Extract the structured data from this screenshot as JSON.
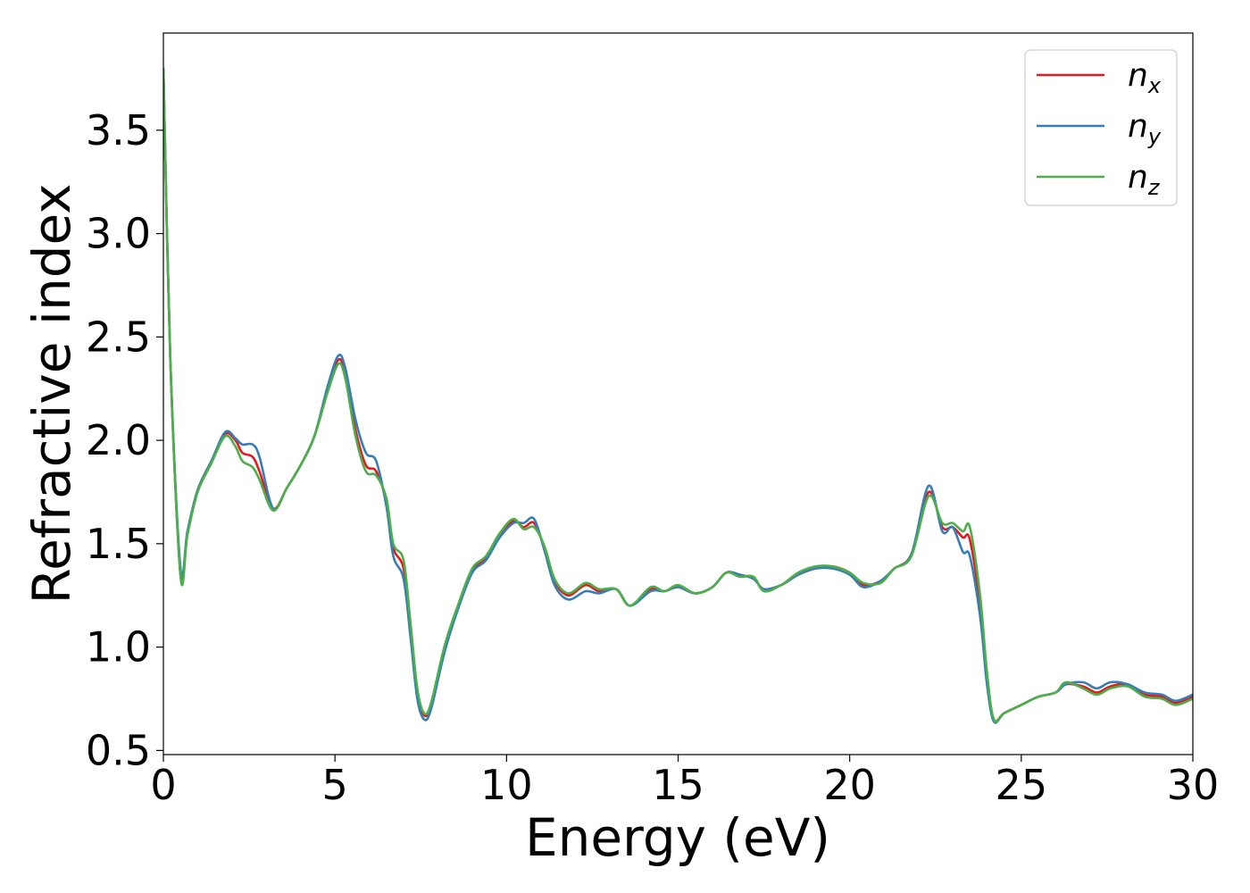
{
  "chart_data": {
    "type": "line",
    "title": "",
    "xlabel": "Energy (eV)",
    "ylabel": "Refractive index",
    "xlim": [
      0,
      30
    ],
    "ylim": [
      0.48,
      3.97
    ],
    "xticks": [
      0,
      5,
      10,
      15,
      20,
      25,
      30
    ],
    "xtick_labels": [
      "0",
      "5",
      "10",
      "15",
      "20",
      "25",
      "30"
    ],
    "yticks": [
      0.5,
      1.0,
      1.5,
      2.0,
      2.5,
      3.0,
      3.5
    ],
    "ytick_labels": [
      "0.5",
      "1.0",
      "1.5",
      "2.0",
      "2.5",
      "3.0",
      "3.5"
    ],
    "grid": false,
    "legend": "top-right",
    "series": [
      {
        "name": "n",
        "sub": "x",
        "color": "#e41a1c",
        "points": [
          [
            0,
            3.8
          ],
          [
            0.2,
            2.4
          ],
          [
            0.5,
            1.35
          ],
          [
            0.7,
            1.55
          ],
          [
            1.0,
            1.76
          ],
          [
            1.4,
            1.9
          ],
          [
            1.8,
            2.03
          ],
          [
            2.1,
            2.0
          ],
          [
            2.3,
            1.94
          ],
          [
            2.6,
            1.92
          ],
          [
            2.8,
            1.85
          ],
          [
            3.2,
            1.67
          ],
          [
            3.6,
            1.77
          ],
          [
            4.0,
            1.88
          ],
          [
            4.4,
            2.02
          ],
          [
            4.8,
            2.25
          ],
          [
            5.1,
            2.39
          ],
          [
            5.3,
            2.32
          ],
          [
            5.6,
            2.05
          ],
          [
            5.9,
            1.88
          ],
          [
            6.2,
            1.85
          ],
          [
            6.5,
            1.7
          ],
          [
            6.7,
            1.48
          ],
          [
            7.0,
            1.38
          ],
          [
            7.2,
            1.1
          ],
          [
            7.4,
            0.78
          ],
          [
            7.6,
            0.67
          ],
          [
            7.8,
            0.72
          ],
          [
            8.2,
            1.0
          ],
          [
            8.6,
            1.2
          ],
          [
            9.0,
            1.37
          ],
          [
            9.4,
            1.43
          ],
          [
            9.8,
            1.54
          ],
          [
            10.2,
            1.61
          ],
          [
            10.5,
            1.58
          ],
          [
            10.8,
            1.6
          ],
          [
            11.1,
            1.48
          ],
          [
            11.4,
            1.32
          ],
          [
            11.8,
            1.25
          ],
          [
            12.3,
            1.3
          ],
          [
            12.7,
            1.27
          ],
          [
            13.2,
            1.28
          ],
          [
            13.6,
            1.2
          ],
          [
            14.2,
            1.28
          ],
          [
            14.6,
            1.27
          ],
          [
            15.0,
            1.29
          ],
          [
            15.5,
            1.26
          ],
          [
            16.0,
            1.29
          ],
          [
            16.4,
            1.36
          ],
          [
            16.8,
            1.35
          ],
          [
            17.2,
            1.33
          ],
          [
            17.5,
            1.28
          ],
          [
            18.0,
            1.3
          ],
          [
            18.5,
            1.35
          ],
          [
            19.0,
            1.38
          ],
          [
            19.5,
            1.39
          ],
          [
            20.0,
            1.36
          ],
          [
            20.4,
            1.3
          ],
          [
            20.9,
            1.32
          ],
          [
            21.3,
            1.38
          ],
          [
            21.8,
            1.45
          ],
          [
            22.3,
            1.75
          ],
          [
            22.7,
            1.58
          ],
          [
            23.0,
            1.58
          ],
          [
            23.3,
            1.53
          ],
          [
            23.5,
            1.52
          ],
          [
            23.8,
            1.2
          ],
          [
            24.0,
            0.85
          ],
          [
            24.2,
            0.65
          ],
          [
            24.5,
            0.68
          ],
          [
            25.0,
            0.72
          ],
          [
            25.5,
            0.76
          ],
          [
            26.0,
            0.78
          ],
          [
            26.3,
            0.82
          ],
          [
            26.8,
            0.81
          ],
          [
            27.2,
            0.78
          ],
          [
            27.6,
            0.81
          ],
          [
            28.1,
            0.82
          ],
          [
            28.6,
            0.77
          ],
          [
            29.1,
            0.76
          ],
          [
            29.5,
            0.73
          ],
          [
            30.0,
            0.76
          ]
        ]
      },
      {
        "name": "n",
        "sub": "y",
        "color": "#377eb8",
        "points": [
          [
            0,
            3.8
          ],
          [
            0.2,
            2.4
          ],
          [
            0.5,
            1.38
          ],
          [
            0.7,
            1.56
          ],
          [
            1.0,
            1.76
          ],
          [
            1.4,
            1.9
          ],
          [
            1.8,
            2.04
          ],
          [
            2.1,
            2.01
          ],
          [
            2.3,
            1.98
          ],
          [
            2.6,
            1.98
          ],
          [
            2.8,
            1.92
          ],
          [
            3.2,
            1.67
          ],
          [
            3.6,
            1.77
          ],
          [
            4.0,
            1.88
          ],
          [
            4.4,
            2.02
          ],
          [
            4.8,
            2.27
          ],
          [
            5.1,
            2.41
          ],
          [
            5.3,
            2.35
          ],
          [
            5.6,
            2.1
          ],
          [
            5.9,
            1.94
          ],
          [
            6.2,
            1.9
          ],
          [
            6.5,
            1.68
          ],
          [
            6.7,
            1.44
          ],
          [
            7.0,
            1.33
          ],
          [
            7.2,
            1.05
          ],
          [
            7.4,
            0.75
          ],
          [
            7.6,
            0.65
          ],
          [
            7.8,
            0.7
          ],
          [
            8.2,
            0.98
          ],
          [
            8.6,
            1.19
          ],
          [
            9.0,
            1.36
          ],
          [
            9.4,
            1.42
          ],
          [
            9.8,
            1.53
          ],
          [
            10.2,
            1.6
          ],
          [
            10.5,
            1.6
          ],
          [
            10.8,
            1.62
          ],
          [
            11.1,
            1.47
          ],
          [
            11.4,
            1.3
          ],
          [
            11.8,
            1.23
          ],
          [
            12.3,
            1.27
          ],
          [
            12.7,
            1.26
          ],
          [
            13.2,
            1.28
          ],
          [
            13.6,
            1.2
          ],
          [
            14.2,
            1.27
          ],
          [
            14.6,
            1.27
          ],
          [
            15.0,
            1.29
          ],
          [
            15.5,
            1.26
          ],
          [
            16.0,
            1.29
          ],
          [
            16.4,
            1.36
          ],
          [
            16.8,
            1.35
          ],
          [
            17.2,
            1.33
          ],
          [
            17.5,
            1.28
          ],
          [
            18.0,
            1.3
          ],
          [
            18.5,
            1.35
          ],
          [
            19.0,
            1.38
          ],
          [
            19.5,
            1.38
          ],
          [
            20.0,
            1.35
          ],
          [
            20.4,
            1.29
          ],
          [
            20.9,
            1.32
          ],
          [
            21.3,
            1.38
          ],
          [
            21.8,
            1.45
          ],
          [
            22.3,
            1.78
          ],
          [
            22.7,
            1.56
          ],
          [
            23.0,
            1.58
          ],
          [
            23.3,
            1.46
          ],
          [
            23.5,
            1.44
          ],
          [
            23.8,
            1.15
          ],
          [
            24.0,
            0.82
          ],
          [
            24.2,
            0.64
          ],
          [
            24.5,
            0.68
          ],
          [
            25.0,
            0.72
          ],
          [
            25.5,
            0.76
          ],
          [
            26.0,
            0.78
          ],
          [
            26.3,
            0.82
          ],
          [
            26.8,
            0.83
          ],
          [
            27.2,
            0.8
          ],
          [
            27.6,
            0.83
          ],
          [
            28.1,
            0.82
          ],
          [
            28.6,
            0.78
          ],
          [
            29.1,
            0.77
          ],
          [
            29.5,
            0.74
          ],
          [
            30.0,
            0.77
          ]
        ]
      },
      {
        "name": "n",
        "sub": "z",
        "color": "#4daf4a",
        "points": [
          [
            0,
            3.8
          ],
          [
            0.2,
            2.4
          ],
          [
            0.5,
            1.34
          ],
          [
            0.7,
            1.54
          ],
          [
            1.0,
            1.75
          ],
          [
            1.4,
            1.89
          ],
          [
            1.8,
            2.02
          ],
          [
            2.1,
            1.97
          ],
          [
            2.3,
            1.9
          ],
          [
            2.6,
            1.87
          ],
          [
            2.8,
            1.81
          ],
          [
            3.2,
            1.66
          ],
          [
            3.6,
            1.77
          ],
          [
            4.0,
            1.88
          ],
          [
            4.4,
            2.02
          ],
          [
            4.8,
            2.24
          ],
          [
            5.1,
            2.37
          ],
          [
            5.3,
            2.3
          ],
          [
            5.6,
            2.02
          ],
          [
            5.9,
            1.85
          ],
          [
            6.2,
            1.83
          ],
          [
            6.5,
            1.72
          ],
          [
            6.7,
            1.5
          ],
          [
            7.0,
            1.42
          ],
          [
            7.2,
            1.12
          ],
          [
            7.4,
            0.8
          ],
          [
            7.6,
            0.68
          ],
          [
            7.8,
            0.73
          ],
          [
            8.2,
            1.01
          ],
          [
            8.6,
            1.21
          ],
          [
            9.0,
            1.38
          ],
          [
            9.4,
            1.44
          ],
          [
            9.8,
            1.55
          ],
          [
            10.2,
            1.62
          ],
          [
            10.5,
            1.57
          ],
          [
            10.8,
            1.58
          ],
          [
            11.1,
            1.49
          ],
          [
            11.4,
            1.33
          ],
          [
            11.8,
            1.26
          ],
          [
            12.3,
            1.31
          ],
          [
            12.7,
            1.28
          ],
          [
            13.2,
            1.28
          ],
          [
            13.6,
            1.2
          ],
          [
            14.2,
            1.29
          ],
          [
            14.6,
            1.27
          ],
          [
            15.0,
            1.3
          ],
          [
            15.5,
            1.26
          ],
          [
            16.0,
            1.29
          ],
          [
            16.4,
            1.36
          ],
          [
            16.8,
            1.34
          ],
          [
            17.2,
            1.34
          ],
          [
            17.5,
            1.27
          ],
          [
            18.0,
            1.3
          ],
          [
            18.5,
            1.36
          ],
          [
            19.0,
            1.39
          ],
          [
            19.5,
            1.39
          ],
          [
            20.0,
            1.36
          ],
          [
            20.4,
            1.31
          ],
          [
            20.9,
            1.31
          ],
          [
            21.3,
            1.38
          ],
          [
            21.8,
            1.44
          ],
          [
            22.3,
            1.73
          ],
          [
            22.7,
            1.6
          ],
          [
            23.0,
            1.6
          ],
          [
            23.3,
            1.56
          ],
          [
            23.5,
            1.58
          ],
          [
            23.8,
            1.25
          ],
          [
            24.0,
            0.88
          ],
          [
            24.2,
            0.65
          ],
          [
            24.5,
            0.68
          ],
          [
            25.0,
            0.72
          ],
          [
            25.5,
            0.76
          ],
          [
            26.0,
            0.78
          ],
          [
            26.3,
            0.83
          ],
          [
            26.8,
            0.8
          ],
          [
            27.2,
            0.77
          ],
          [
            27.6,
            0.8
          ],
          [
            28.1,
            0.81
          ],
          [
            28.6,
            0.76
          ],
          [
            29.1,
            0.75
          ],
          [
            29.5,
            0.72
          ],
          [
            30.0,
            0.75
          ]
        ]
      }
    ]
  }
}
